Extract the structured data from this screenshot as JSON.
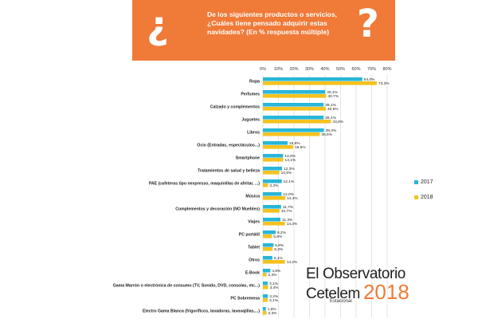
{
  "banner": {
    "question": "De los siguientes productos o servicios, ¿Cuáles tiene pensado adquirir estas navidades? (En % respuesta múltiple)",
    "qmark_left": "¿",
    "qmark_right": "?",
    "color": "#f07a38"
  },
  "chart_data": {
    "type": "bar",
    "orientation": "horizontal",
    "xlim": [
      0,
      80
    ],
    "ticks": [
      "0%",
      "10%",
      "20%",
      "30%",
      "40%",
      "50%",
      "60%",
      "70%",
      "80%"
    ],
    "grid": true,
    "legend_position": "right",
    "categories": [
      "Ropa",
      "Perfumes",
      "Calzado y complementos",
      "Juguetes",
      "Libros",
      "Ocio (Entradas, espectáculos...)",
      "Smartphone",
      "Tratamientos de salud y belleza",
      "PAE (cafeteras tipo nexpresso, maquinillas de afeitar, ...)",
      "Música",
      "Complementos y decoración (NO Muebles)",
      "Viajes",
      "PC portátil",
      "Tablet",
      "Otros",
      "E-Book",
      "Gama Marrón o electrónica de consumo (TV, Sonido, DVD, consolas, etc...)",
      "PC Sobremesa",
      "Electro Gama Blanca (frigoríficos, lavadoras, lavavajillas,...)"
    ],
    "series": [
      {
        "name": "2017",
        "color": "#29b6d8",
        "values": [
          64.0,
          40.1,
          39.1,
          39.1,
          39.3,
          15.9,
          13.0,
          12.3,
          12.1,
          12.0,
          11.7,
          11.3,
          8.2,
          6.8,
          6.1,
          4.8,
          3.1,
          3.2,
          1.9
        ],
        "labels": [
          "64,0%",
          "40,1%",
          "39,1%",
          "39,1%",
          "39,3%",
          "15,9%",
          "13,0%",
          "12,3%",
          "12,1%",
          "12,0%",
          "11,7%",
          "11,3%",
          "8,2%",
          "6,8%",
          "6,1%",
          "4,8%",
          "3,1%",
          "3,2%",
          "1,9%"
        ]
      },
      {
        "name": "2018",
        "color": "#f4c21f",
        "values": [
          73.3,
          40.7,
          40.5,
          43.8,
          36.6,
          19.5,
          13.1,
          10.6,
          3.3,
          14.4,
          10.7,
          14.2,
          5.8,
          6.3,
          14.2,
          2.3,
          3.4,
          3.1,
          2.3
        ],
        "labels": [
          "73,3%",
          "40,7%",
          "40,5%",
          "43,8%",
          "36,6%",
          "19,5%",
          "13,1%",
          "10,6%",
          "3,3%",
          "14,4%",
          "10,7%",
          "14,2%",
          "5,8%",
          "6,3%",
          "14,2%",
          "2,3%",
          "3,4%",
          "3,1%",
          "2,3%"
        ]
      }
    ]
  },
  "brand": {
    "line1": "El Observatorio",
    "name": "Cetelem",
    "year": "2018",
    "sub": "Estacional",
    "year_color": "#f07a38"
  }
}
